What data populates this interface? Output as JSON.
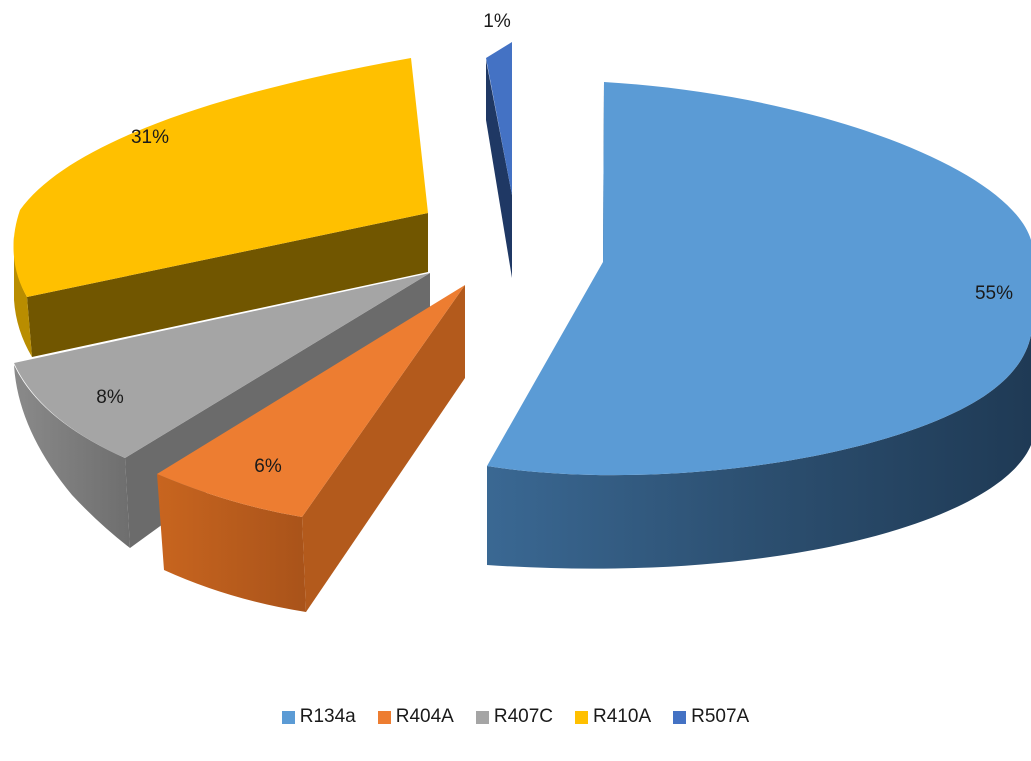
{
  "chart_data": {
    "type": "pie",
    "style": "3d-exploded",
    "title": "",
    "legend_position": "bottom",
    "categories": [
      "R134a",
      "R404A",
      "R407C",
      "R410A",
      "R507A"
    ],
    "values": [
      55,
      6,
      8,
      31,
      1
    ],
    "labels": [
      "55%",
      "6%",
      "8%",
      "31%",
      "1%"
    ],
    "colors": [
      "#5B9BD5",
      "#ED7D31",
      "#A5A5A5",
      "#FFC000",
      "#4472C4"
    ]
  }
}
